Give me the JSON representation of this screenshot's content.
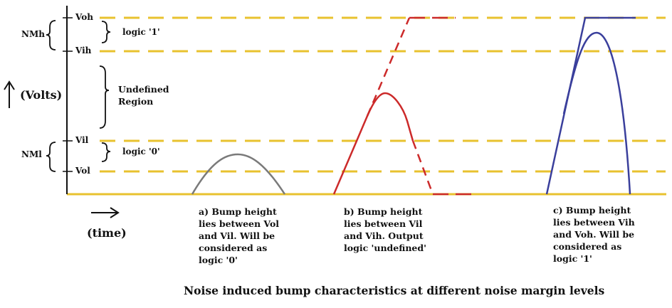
{
  "colors": {
    "level_line": "#e8c22f",
    "axis": "#111111",
    "bump_a": "#7a7a7a",
    "bump_b": "#cc2a2a",
    "bump_c": "#3a3f9c"
  },
  "levels": {
    "voh": "Voh",
    "vih": "Vih",
    "vil": "Vil",
    "vol": "Vol"
  },
  "margins": {
    "nmh": "NMh",
    "nml": "NMl"
  },
  "regions": {
    "logic1": "logic '1'",
    "undefined": "Undefined\nRegion",
    "logic0": "logic '0'"
  },
  "axes": {
    "y_label": "(Volts)",
    "x_label": "(time)"
  },
  "captions": {
    "a": "a) Bump height\nlies between Vol\nand Vil. Will be\nconsidered as\nlogic '0'",
    "b": "b) Bump height\nlies between Vil\nand Vih. Output\nlogic 'undefined'",
    "c": "c) Bump height\nlies between Vih\nand Voh. Will be\nconsidered as\nlogic '1'"
  },
  "title": "Noise induced bump characteristics at different noise margin levels"
}
